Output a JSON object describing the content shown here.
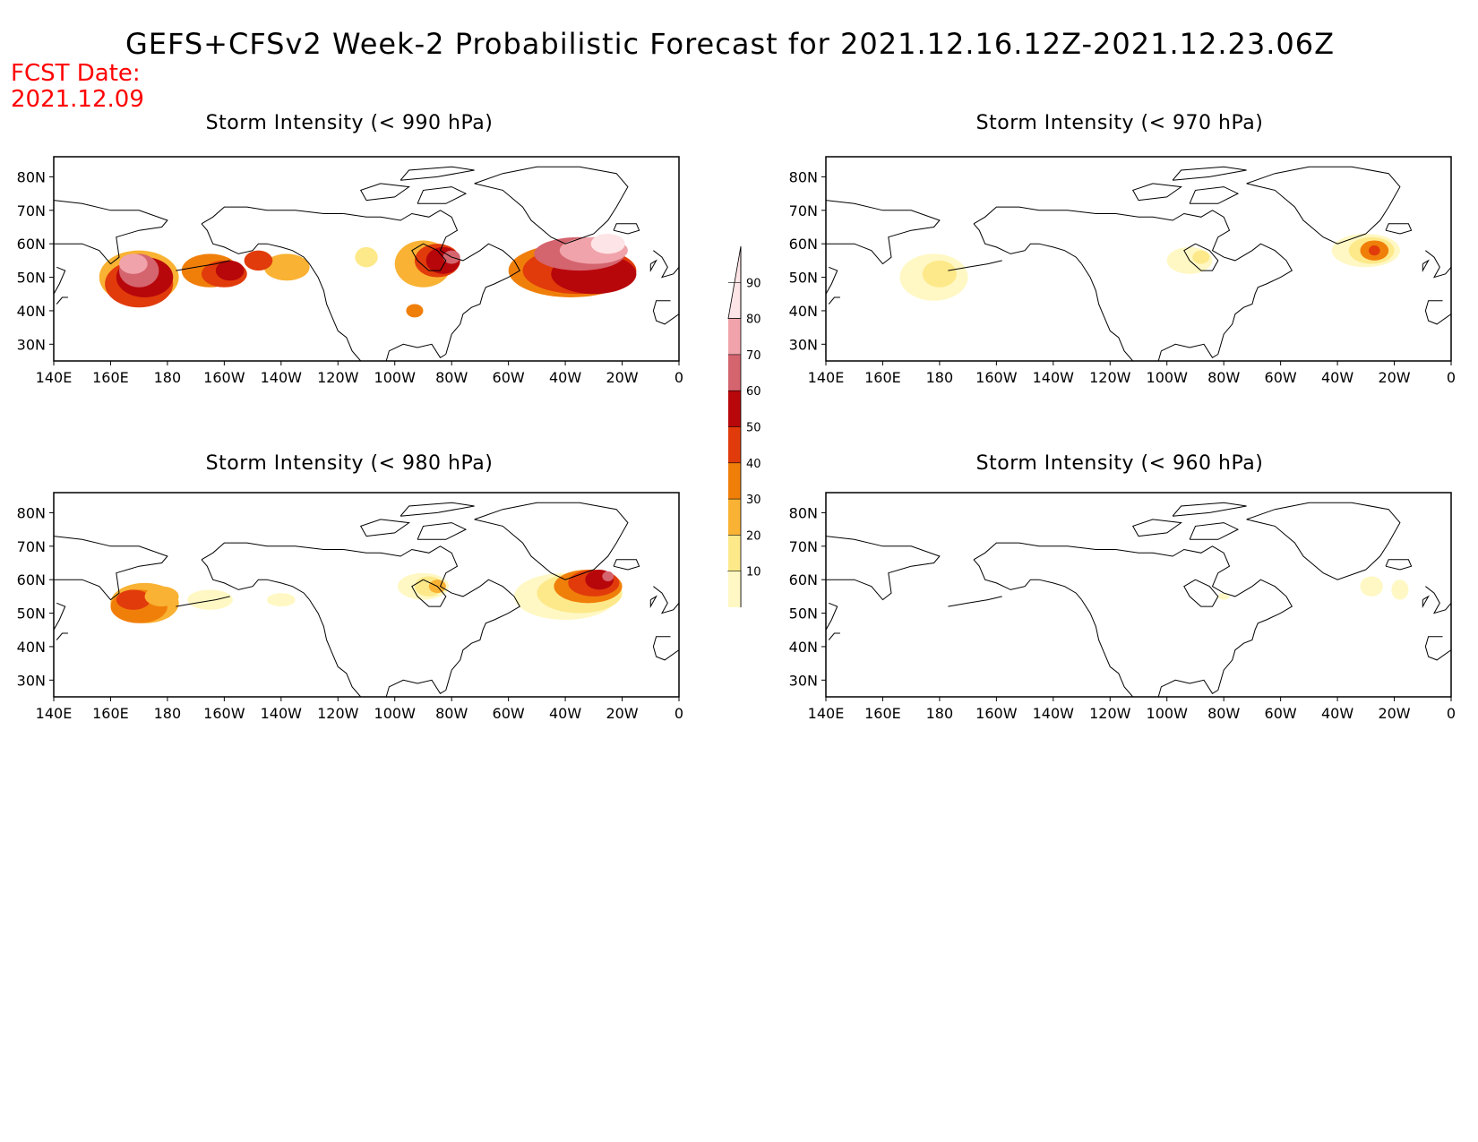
{
  "title": "GEFS+CFSv2 Week-2 Probabilistic Forecast for 2021.12.16.12Z-2021.12.23.06Z",
  "forecast_date": {
    "label": "FCST Date:",
    "value": "2021.12.09"
  },
  "panels": [
    {
      "title": "Storm Intensity (< 990 hPa)"
    },
    {
      "title": "Storm Intensity (< 970 hPa)"
    },
    {
      "title": "Storm Intensity (< 980 hPa)"
    },
    {
      "title": "Storm Intensity (< 960 hPa)"
    }
  ],
  "lon_ticks": [
    "140E",
    "160E",
    "180",
    "160W",
    "140W",
    "120W",
    "100W",
    "80W",
    "60W",
    "40W",
    "20W",
    "0"
  ],
  "lat_ticks": [
    "80N",
    "70N",
    "60N",
    "50N",
    "40N",
    "30N"
  ],
  "colorbar": {
    "levels": [
      "10",
      "20",
      "30",
      "40",
      "50",
      "60",
      "70",
      "80",
      "90"
    ],
    "colors": [
      "#fff8c4",
      "#fde98a",
      "#f9b233",
      "#f07f0a",
      "#e13b0b",
      "#b8070b",
      "#d4646e",
      "#f0a3aa",
      "#fde4e6"
    ]
  }
}
